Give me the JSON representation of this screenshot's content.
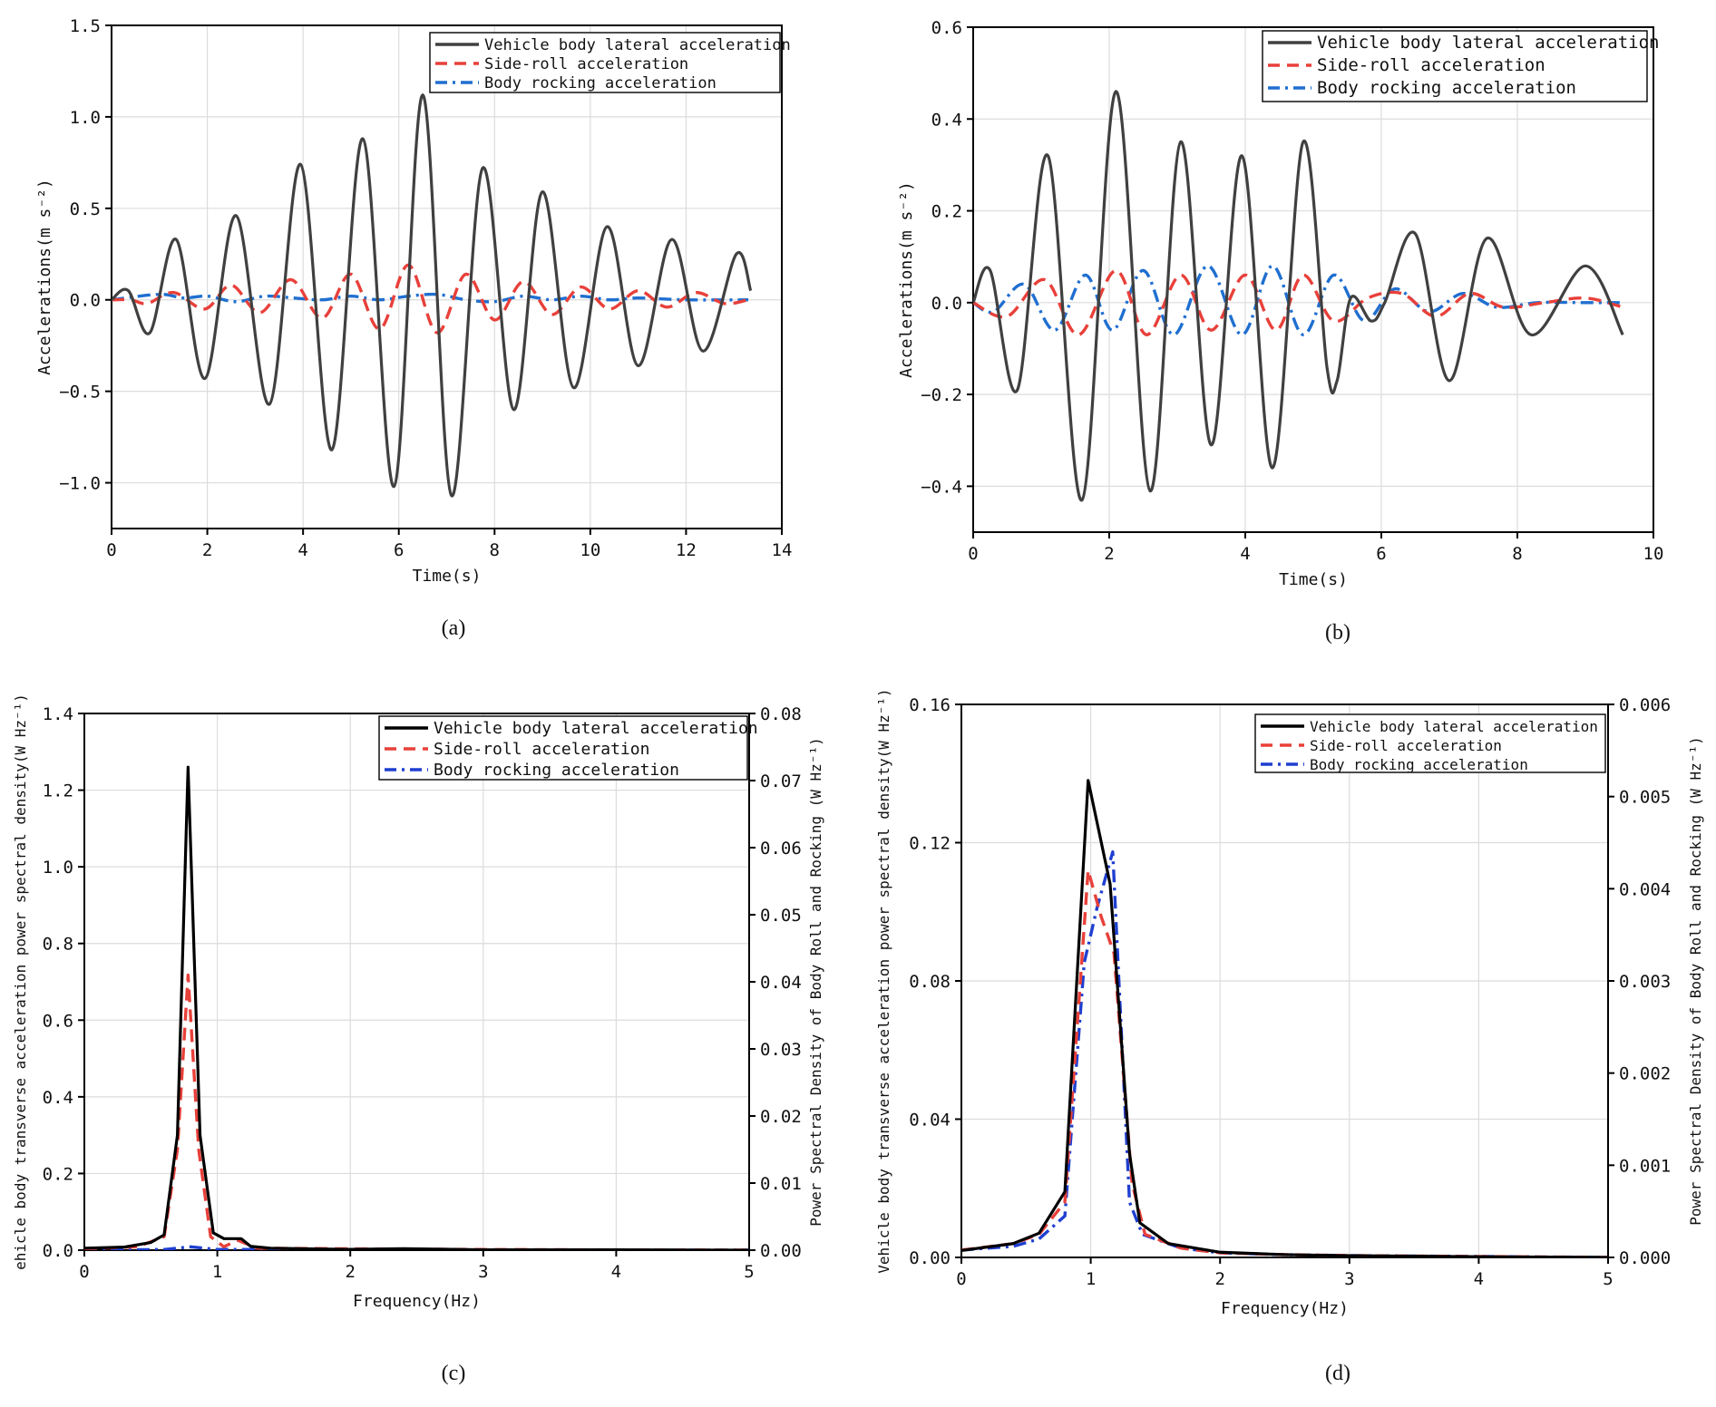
{
  "panels": [
    {
      "id": "a",
      "label": "(a)",
      "type": "line",
      "xlabel": "Time(s)",
      "ylabel": "Accelerations(m s⁻²)",
      "xlim": [
        0,
        14
      ],
      "ylim": [
        -1.25,
        1.5
      ],
      "xticks": [
        0,
        2,
        4,
        6,
        8,
        10,
        12,
        14
      ],
      "xtick_labels": [
        "0",
        "2",
        "4",
        "6",
        "8",
        "10",
        "12",
        "14"
      ],
      "yticks": [
        -1.0,
        -0.5,
        0.0,
        0.5,
        1.0,
        1.5
      ],
      "ytick_labels": [
        "−1.0",
        "−0.5",
        "0.0",
        "0.5",
        "1.0",
        "1.5"
      ],
      "legend": [
        "Vehicle body lateral acceleration",
        "Side-roll acceleration",
        "Body rocking acceleration"
      ],
      "series": [
        {
          "name": "Vehicle body lateral acceleration",
          "color": "#404040",
          "style": "solid",
          "x": [
            0,
            0.35,
            0.8,
            1.35,
            1.95,
            2.6,
            3.3,
            3.95,
            4.6,
            5.25,
            5.9,
            6.5,
            7.1,
            7.75,
            8.4,
            9.0,
            9.65,
            10.35,
            11.0,
            11.7,
            12.35,
            13.05,
            13.35
          ],
          "y": [
            0,
            0.05,
            -0.18,
            0.33,
            -0.43,
            0.46,
            -0.57,
            0.74,
            -0.82,
            0.88,
            -1.02,
            1.12,
            -1.07,
            0.72,
            -0.6,
            0.59,
            -0.48,
            0.4,
            -0.36,
            0.33,
            -0.28,
            0.25,
            0.05
          ]
        },
        {
          "name": "Side-roll acceleration",
          "color": "#e8403a",
          "style": "dash",
          "x": [
            0,
            0.4,
            0.75,
            1.3,
            1.95,
            2.5,
            3.1,
            3.75,
            4.4,
            5.0,
            5.6,
            6.2,
            6.8,
            7.4,
            8.0,
            8.6,
            9.2,
            9.8,
            10.4,
            11.0,
            11.6,
            12.2,
            12.8,
            13.3
          ],
          "y": [
            0,
            0,
            -0.02,
            0.04,
            -0.05,
            0.08,
            -0.07,
            0.11,
            -0.1,
            0.14,
            -0.16,
            0.19,
            -0.18,
            0.14,
            -0.11,
            0.1,
            -0.08,
            0.07,
            -0.05,
            0.05,
            -0.04,
            0.04,
            -0.02,
            0
          ]
        },
        {
          "name": "Body rocking acceleration",
          "color": "#1f6fd0",
          "style": "dashdot",
          "x": [
            0,
            1.0,
            1.5,
            2.0,
            2.6,
            3.2,
            3.8,
            4.4,
            5.0,
            5.6,
            6.2,
            6.8,
            7.4,
            8.0,
            8.6,
            9.2,
            9.8,
            10.4,
            11.0,
            12.0,
            13.3
          ],
          "y": [
            0,
            0.03,
            0.01,
            0.02,
            -0.01,
            0.02,
            0.01,
            0.0,
            0.02,
            0.0,
            0.02,
            0.03,
            0.0,
            -0.01,
            0.02,
            0.0,
            0.02,
            0.0,
            0.01,
            0.0,
            0.0
          ]
        }
      ]
    },
    {
      "id": "b",
      "label": "(b)",
      "type": "line",
      "xlabel": "Time(s)",
      "ylabel": "Accelerations(m s⁻²)",
      "xlim": [
        0,
        10
      ],
      "ylim": [
        -0.5,
        0.6
      ],
      "xticks": [
        0,
        2,
        4,
        6,
        8,
        10
      ],
      "xtick_labels": [
        "0",
        "2",
        "4",
        "6",
        "8",
        "10"
      ],
      "yticks": [
        -0.4,
        -0.2,
        0.0,
        0.2,
        0.4,
        0.6
      ],
      "ytick_labels": [
        "−0.4",
        "−0.2",
        "0.0",
        "0.2",
        "0.4",
        "0.6"
      ],
      "legend": [
        "Vehicle body lateral acceleration",
        "Side-roll acceleration",
        "Body rocking acceleration"
      ],
      "series": [
        {
          "name": "Vehicle body lateral acceleration",
          "color": "#404040",
          "style": "solid",
          "x": [
            0,
            0.25,
            0.65,
            1.1,
            1.6,
            2.1,
            2.6,
            3.05,
            3.5,
            3.95,
            4.4,
            4.85,
            5.2,
            5.35,
            5.55,
            5.85,
            6.05,
            6.5,
            7.0,
            7.55,
            8.2,
            9.0,
            9.55
          ],
          "y": [
            0,
            0.07,
            -0.19,
            0.32,
            -0.43,
            0.46,
            -0.41,
            0.35,
            -0.31,
            0.32,
            -0.36,
            0.35,
            -0.14,
            -0.17,
            0.01,
            -0.04,
            0.0,
            0.15,
            -0.17,
            0.14,
            -0.07,
            0.08,
            -0.07
          ]
        },
        {
          "name": "Side-roll acceleration",
          "color": "#e8403a",
          "style": "dash",
          "x": [
            0,
            0.5,
            1.05,
            1.55,
            2.1,
            2.55,
            3.05,
            3.5,
            4.0,
            4.45,
            4.85,
            5.3,
            5.8,
            6.3,
            6.8,
            7.3,
            7.8,
            8.4,
            9.0,
            9.55
          ],
          "y": [
            0,
            -0.03,
            0.05,
            -0.07,
            0.07,
            -0.07,
            0.06,
            -0.06,
            0.06,
            -0.06,
            0.06,
            -0.04,
            0.01,
            0.02,
            -0.03,
            0.02,
            -0.01,
            0.0,
            0.01,
            -0.01
          ]
        },
        {
          "name": "Body rocking acceleration",
          "color": "#1f6fd0",
          "style": "dashdot",
          "x": [
            0,
            0.3,
            0.75,
            1.2,
            1.65,
            2.05,
            2.5,
            2.95,
            3.45,
            3.95,
            4.4,
            4.85,
            5.3,
            5.75,
            6.2,
            6.7,
            7.2,
            7.7,
            8.3,
            9.0,
            9.55
          ],
          "y": [
            0,
            -0.02,
            0.04,
            -0.06,
            0.06,
            -0.06,
            0.07,
            -0.07,
            0.08,
            -0.07,
            0.08,
            -0.07,
            0.06,
            -0.04,
            0.03,
            -0.02,
            0.02,
            -0.01,
            0.0,
            0.0,
            0.0
          ]
        }
      ]
    },
    {
      "id": "c",
      "label": "(c)",
      "type": "line",
      "xlabel": "Frequency(Hz)",
      "ylabel": "ehicle body transverse acceleration power spectral density(W Hz⁻¹)",
      "ylabel2": "Power Spectral Density of Body Roll and Rocking  (W Hz⁻¹)",
      "xlim": [
        0,
        5
      ],
      "ylim": [
        0,
        1.4
      ],
      "ylim2": [
        0,
        0.08
      ],
      "xticks": [
        0,
        1,
        2,
        3,
        4,
        5
      ],
      "xtick_labels": [
        "0",
        "1",
        "2",
        "3",
        "4",
        "5"
      ],
      "yticks": [
        0.0,
        0.2,
        0.4,
        0.6,
        0.8,
        1.0,
        1.2,
        1.4
      ],
      "ytick_labels": [
        "0.0",
        "0.2",
        "0.4",
        "0.6",
        "0.8",
        "1.0",
        "1.2",
        "1.4"
      ],
      "yticks2": [
        0.0,
        0.01,
        0.02,
        0.03,
        0.04,
        0.05,
        0.06,
        0.07,
        0.08
      ],
      "ytick2_labels": [
        "0.00",
        "0.01",
        "0.02",
        "0.03",
        "0.04",
        "0.05",
        "0.06",
        "0.07",
        "0.08"
      ],
      "legend": [
        "Vehicle body lateral acceleration",
        "Side-roll acceleration",
        "Body rocking acceleration"
      ],
      "series": [
        {
          "name": "Vehicle body lateral acceleration",
          "color": "#000000",
          "style": "solid",
          "axis": "left",
          "x": [
            0,
            0.3,
            0.5,
            0.6,
            0.7,
            0.78,
            0.87,
            0.97,
            1.05,
            1.12,
            1.18,
            1.25,
            1.4,
            2.0,
            2.4,
            3.0,
            4.0,
            5.0
          ],
          "y": [
            0.005,
            0.008,
            0.02,
            0.04,
            0.3,
            1.26,
            0.3,
            0.045,
            0.03,
            0.03,
            0.03,
            0.01,
            0.005,
            0.002,
            0.004,
            0.001,
            0.001,
            0.0
          ]
        },
        {
          "name": "Side-roll acceleration",
          "color": "#e8403a",
          "style": "dash",
          "axis": "right",
          "x": [
            0,
            0.4,
            0.6,
            0.7,
            0.78,
            0.86,
            0.95,
            1.05,
            1.15,
            1.3,
            2.0,
            3.0,
            5.0
          ],
          "y": [
            0.0002,
            0.0005,
            0.002,
            0.015,
            0.041,
            0.015,
            0.002,
            0.0005,
            0.0015,
            0.0003,
            0.0002,
            0.0001,
            0.0
          ]
        },
        {
          "name": "Body rocking acceleration",
          "color": "#1f3fd0",
          "style": "dashdot",
          "axis": "right",
          "x": [
            0,
            0.6,
            0.8,
            1.0,
            2.0,
            3.0,
            5.0
          ],
          "y": [
            0.0,
            0.0001,
            0.0005,
            0.0001,
            0.0001,
            0.0,
            0.0
          ]
        }
      ]
    },
    {
      "id": "d",
      "label": "(d)",
      "type": "line",
      "xlabel": "Frequency(Hz)",
      "ylabel": "Vehicle body transverse acceleration power spectral density(W Hz⁻¹)",
      "ylabel2": "Power Spectral Density of Body Roll and Rocking  (W Hz⁻¹)",
      "xlim": [
        0,
        5
      ],
      "ylim": [
        0,
        0.16
      ],
      "ylim2": [
        0,
        0.006
      ],
      "xticks": [
        0,
        1,
        2,
        3,
        4,
        5
      ],
      "xtick_labels": [
        "0",
        "1",
        "2",
        "3",
        "4",
        "5"
      ],
      "yticks": [
        0.0,
        0.04,
        0.08,
        0.12,
        0.16
      ],
      "ytick_labels": [
        "0.00",
        "0.04",
        "0.08",
        "0.12",
        "0.16"
      ],
      "yticks2": [
        0.0,
        0.001,
        0.002,
        0.003,
        0.004,
        0.005,
        0.006
      ],
      "ytick2_labels": [
        "0.000",
        "0.001",
        "0.002",
        "0.003",
        "0.004",
        "0.005",
        "0.006"
      ],
      "legend": [
        "Vehicle body lateral acceleration",
        "Side-roll acceleration",
        "Body rocking acceleration"
      ],
      "series": [
        {
          "name": "Vehicle body lateral acceleration",
          "color": "#000000",
          "style": "solid",
          "axis": "left",
          "x": [
            0,
            0.4,
            0.6,
            0.8,
            0.98,
            1.15,
            1.3,
            1.38,
            1.6,
            2.0,
            2.5,
            3.0,
            4.0,
            5.0
          ],
          "y": [
            0.002,
            0.004,
            0.007,
            0.019,
            0.138,
            0.108,
            0.03,
            0.01,
            0.004,
            0.0015,
            0.0008,
            0.0005,
            0.0002,
            0.0
          ]
        },
        {
          "name": "Side-roll acceleration",
          "color": "#e8403a",
          "style": "dash",
          "axis": "right",
          "x": [
            0,
            0.4,
            0.6,
            0.8,
            0.98,
            1.08,
            1.18,
            1.32,
            1.42,
            1.7,
            2.0,
            2.5,
            3.0,
            5.0
          ],
          "y": [
            8e-05,
            0.00015,
            0.00025,
            0.0006,
            0.0042,
            0.0037,
            0.0033,
            0.0008,
            0.00025,
            0.0001,
            5e-05,
            3e-05,
            2e-05,
            0.0
          ]
        },
        {
          "name": "Body rocking acceleration",
          "color": "#1f3fd0",
          "style": "dashdot",
          "axis": "right",
          "x": [
            0,
            0.4,
            0.6,
            0.8,
            0.95,
            1.05,
            1.17,
            1.3,
            1.4,
            1.7,
            2.0,
            2.5,
            3.0,
            5.0
          ],
          "y": [
            8e-05,
            0.00012,
            0.0002,
            0.00045,
            0.0032,
            0.0038,
            0.0044,
            0.0006,
            0.00025,
            0.0001,
            5e-05,
            3e-05,
            2e-05,
            0.0
          ]
        }
      ]
    }
  ]
}
